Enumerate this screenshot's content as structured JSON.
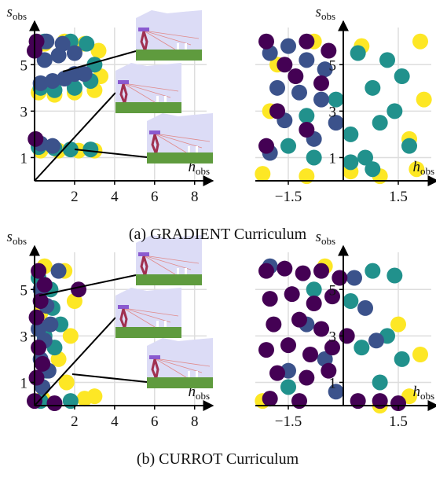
{
  "chart_data": [
    {
      "type": "scatter",
      "xlabel": [
        "h",
        "obs"
      ],
      "ylabel": [
        "s",
        "obs"
      ],
      "xlim": [
        0,
        8.6
      ],
      "ylim": [
        0,
        6.6
      ],
      "xticks": [
        2,
        4,
        6,
        8
      ],
      "yticks": [
        1,
        3,
        5
      ],
      "grid": true,
      "series": [
        {
          "color": "#fde725",
          "x": [
            0.2,
            1.0,
            2.0,
            3.0,
            3.3,
            0.5,
            1.5,
            2.5,
            3.2,
            0.3,
            1.2,
            2.2,
            3.0
          ],
          "y": [
            3.8,
            3.7,
            3.8,
            3.9,
            4.5,
            5.9,
            6.0,
            5.9,
            5.6,
            1.3,
            1.3,
            1.3,
            1.3
          ]
        },
        {
          "color": "#21918c",
          "x": [
            0.3,
            1.0,
            2.0,
            2.8,
            3.0,
            0.5,
            1.8,
            2.6,
            0.2,
            1.0,
            1.8,
            2.8
          ],
          "y": [
            4.0,
            3.9,
            4.0,
            4.3,
            5.0,
            6.0,
            6.0,
            5.9,
            1.45,
            1.4,
            1.35,
            1.35
          ]
        },
        {
          "color": "#3b528b",
          "x": [
            0.3,
            0.9,
            1.5,
            2.0,
            2.5,
            0.5,
            1.2,
            2.0,
            0.6,
            1.4,
            0.3,
            0.9
          ],
          "y": [
            4.2,
            4.3,
            4.4,
            4.6,
            4.6,
            5.2,
            5.4,
            5.5,
            6.0,
            5.9,
            1.6,
            1.5
          ]
        },
        {
          "color": "#440154",
          "x": [
            0.1,
            0.0,
            0.05
          ],
          "y": [
            6.0,
            5.6,
            1.8
          ]
        }
      ]
    },
    {
      "type": "scatter",
      "xlabel": [
        "h",
        "obs"
      ],
      "ylabel": [
        "s",
        "obs"
      ],
      "xlim": [
        -2.4,
        2.4
      ],
      "ylim": [
        0,
        6.6
      ],
      "xticks": [
        {
          "value": -1.5,
          "label": "−1.5"
        },
        1.5
      ],
      "yticks": [
        1,
        3,
        5
      ],
      "grid": true,
      "series": [
        {
          "color": "#fde725",
          "x": [
            -2.2,
            -2.0,
            -1.0,
            0.2,
            1.0,
            2.0,
            2.2,
            -0.8,
            0.5,
            2.1,
            1.8,
            -1.8
          ],
          "y": [
            0.3,
            3.0,
            0.2,
            0.4,
            0.2,
            0.5,
            3.5,
            6.0,
            5.8,
            6.0,
            1.8,
            5.0
          ]
        },
        {
          "color": "#21918c",
          "x": [
            -1.5,
            -0.8,
            0.2,
            0.6,
            1.0,
            1.4,
            1.6,
            0.8,
            0.4,
            -0.2,
            1.2,
            0.2,
            0.8,
            -1.0,
            1.8
          ],
          "y": [
            1.5,
            1.0,
            2.0,
            1.0,
            2.5,
            3.0,
            4.5,
            4.0,
            5.5,
            3.5,
            5.2,
            0.8,
            0.5,
            2.8,
            1.5
          ]
        },
        {
          "color": "#3b528b",
          "x": [
            -2.0,
            -1.5,
            -1.0,
            -0.5,
            -1.8,
            -1.2,
            -0.6,
            -0.2,
            -1.6,
            -0.8,
            -2.0
          ],
          "y": [
            5.5,
            5.8,
            5.2,
            4.8,
            4.0,
            3.8,
            3.5,
            2.5,
            2.6,
            1.8,
            1.2
          ]
        },
        {
          "color": "#440154",
          "x": [
            -2.1,
            -1.6,
            -1.0,
            -0.4,
            -1.8,
            -1.3,
            -0.6,
            -2.1,
            -1.0
          ],
          "y": [
            6.0,
            5.0,
            6.0,
            5.6,
            3.0,
            4.5,
            4.2,
            1.5,
            2.2
          ]
        }
      ]
    },
    {
      "type": "scatter",
      "xlabel": [
        "h",
        "obs"
      ],
      "ylabel": [
        "s",
        "obs"
      ],
      "xlim": [
        0,
        8.6
      ],
      "ylim": [
        0,
        6.6
      ],
      "xticks": [
        2,
        4,
        6,
        8
      ],
      "yticks": [
        1,
        3,
        5
      ],
      "grid": true,
      "series": [
        {
          "color": "#fde725",
          "x": [
            0.5,
            1.5,
            2.0,
            1.8,
            1.2,
            0.4,
            2.5,
            3.0,
            0.3,
            1.6
          ],
          "y": [
            6.0,
            5.8,
            4.5,
            3.0,
            2.0,
            0.3,
            0.3,
            0.4,
            4.0,
            1.0
          ]
        },
        {
          "color": "#21918c",
          "x": [
            0.2,
            0.8,
            1.3,
            1.0,
            0.6,
            0.3,
            1.8,
            0.9,
            0.5
          ],
          "y": [
            5.5,
            5.0,
            3.5,
            2.5,
            1.5,
            0.2,
            0.2,
            4.2,
            3.0
          ]
        },
        {
          "color": "#3b528b",
          "x": [
            0.3,
            0.6,
            0.8,
            0.5,
            0.3,
            0.7,
            0.4,
            1.2,
            0.2
          ],
          "y": [
            5.0,
            4.3,
            3.5,
            2.8,
            2.0,
            1.5,
            0.8,
            5.8,
            3.3
          ]
        },
        {
          "color": "#440154",
          "x": [
            0.2,
            0.5,
            0.3,
            0.1,
            0.2,
            0.4,
            0.0,
            2.2,
            1.0,
            0.1
          ],
          "y": [
            5.8,
            5.2,
            4.5,
            3.8,
            2.5,
            1.8,
            0.2,
            5.0,
            0.1,
            1.2
          ]
        }
      ]
    },
    {
      "type": "scatter",
      "xlabel": [
        "h",
        "obs"
      ],
      "ylabel": [
        "s",
        "obs"
      ],
      "xlim": [
        -2.4,
        2.4
      ],
      "ylim": [
        0,
        6.6
      ],
      "xticks": [
        {
          "value": -1.5,
          "label": "−1.5"
        },
        1.5
      ],
      "yticks": [
        1,
        3,
        5
      ],
      "grid": true,
      "series": [
        {
          "color": "#fde725",
          "x": [
            -2.2,
            1.0,
            1.5,
            2.1,
            -0.5,
            1.8
          ],
          "y": [
            0.2,
            0.0,
            3.5,
            2.2,
            6.0,
            0.4
          ]
        },
        {
          "color": "#21918c",
          "x": [
            0.2,
            0.8,
            1.2,
            1.6,
            0.5,
            1.0,
            -1.5,
            -0.8,
            1.4
          ],
          "y": [
            4.5,
            5.8,
            3.0,
            2.0,
            2.5,
            1.0,
            0.8,
            5.0,
            5.6
          ]
        },
        {
          "color": "#3b528b",
          "x": [
            -2.0,
            -1.0,
            0.3,
            -0.5,
            0.6,
            -1.5,
            0.9,
            -0.2
          ],
          "y": [
            6.0,
            3.5,
            5.5,
            2.0,
            4.2,
            1.5,
            2.8,
            0.6
          ]
        },
        {
          "color": "#440154",
          "x": [
            -2.1,
            -1.6,
            -1.1,
            -0.6,
            -0.1,
            -2.0,
            -1.4,
            -0.8,
            -0.3,
            -1.9,
            -1.2,
            -0.6,
            -2.1,
            -1.5,
            -0.9,
            -0.3,
            -1.8,
            -1.0,
            -0.4,
            0.4,
            1.0,
            1.5,
            -2.0,
            -1.2,
            0.1
          ],
          "y": [
            5.8,
            5.9,
            5.7,
            5.8,
            5.5,
            4.6,
            4.8,
            4.4,
            4.7,
            3.5,
            3.7,
            3.3,
            2.4,
            2.6,
            2.2,
            2.5,
            1.4,
            1.2,
            1.5,
            0.2,
            0.2,
            0.1,
            0.3,
            0.2,
            3.0
          ]
        }
      ]
    }
  ],
  "captions": [
    "(a) GRADIENT Curriculum",
    "(b) CURROT Curriculum"
  ]
}
